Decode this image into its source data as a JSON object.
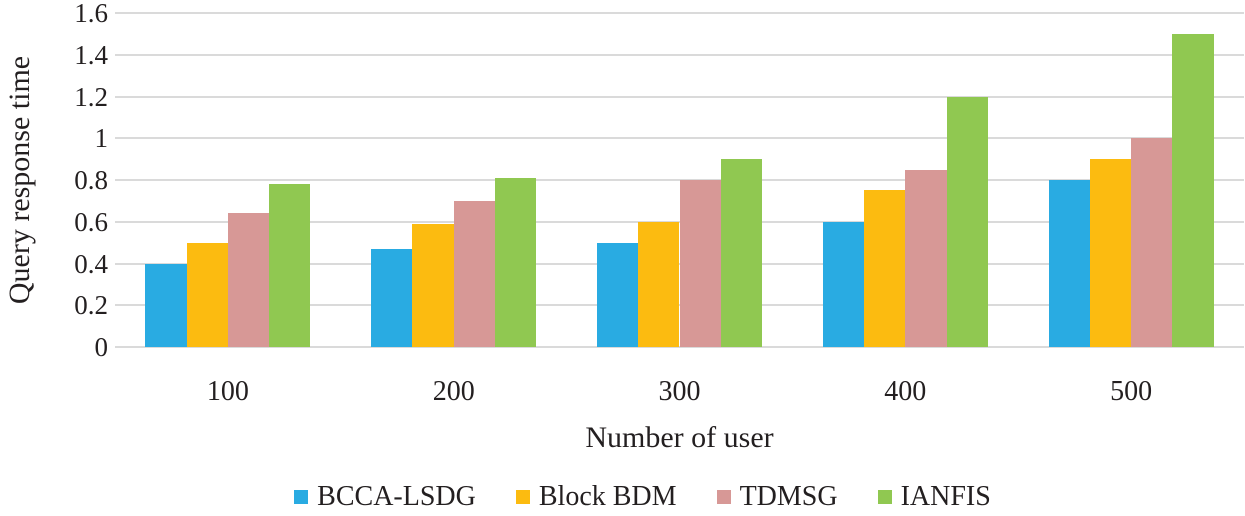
{
  "chart_data": {
    "type": "bar",
    "title": "",
    "xlabel": "Number of user",
    "ylabel": "Query response time",
    "categories": [
      "100",
      "200",
      "300",
      "400",
      "500"
    ],
    "series": [
      {
        "name": "BCCA-LSDG",
        "color": "#29ABE2",
        "values": [
          0.4,
          0.47,
          0.5,
          0.6,
          0.8
        ]
      },
      {
        "name": "Block BDM",
        "color": "#FCBB10",
        "values": [
          0.5,
          0.59,
          0.6,
          0.75,
          0.9
        ]
      },
      {
        "name": "TDMSG",
        "color": "#D79896",
        "values": [
          0.64,
          0.7,
          0.8,
          0.85,
          1.0
        ]
      },
      {
        "name": "IANFIS",
        "color": "#90C851",
        "values": [
          0.78,
          0.81,
          0.9,
          1.2,
          1.5
        ]
      }
    ],
    "y_ticks": [
      "0",
      "0.2",
      "0.4",
      "0.6",
      "0.8",
      "1",
      "1.2",
      "1.4",
      "1.6"
    ],
    "ylim": [
      0,
      1.6
    ],
    "grid": true,
    "legend_position": "bottom",
    "gridline_color": "#DADADA",
    "text_color": "#231F20"
  }
}
